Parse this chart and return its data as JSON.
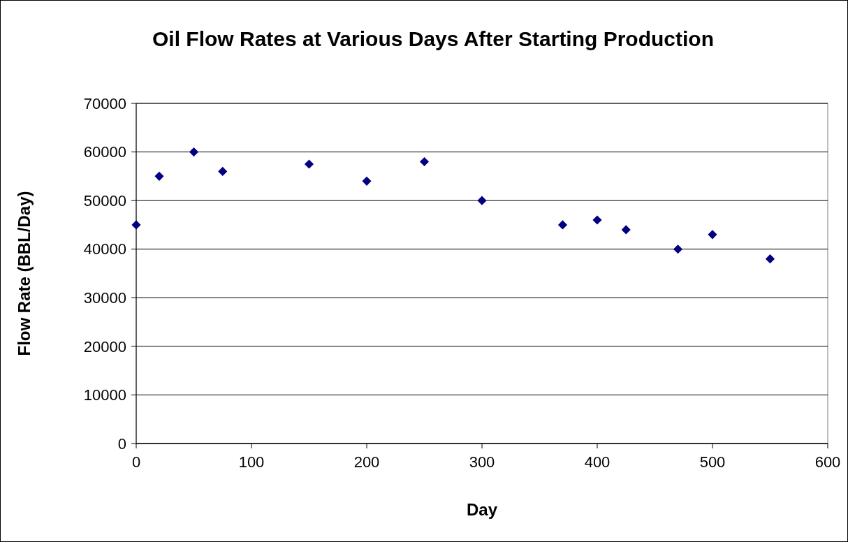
{
  "chart_data": {
    "type": "scatter",
    "title": "Oil Flow Rates at Various Days After Starting Production",
    "xlabel": "Day",
    "ylabel": "Flow Rate (BBL/Day)",
    "x": [
      0,
      20,
      50,
      75,
      150,
      200,
      250,
      300,
      370,
      400,
      425,
      470,
      500,
      550
    ],
    "series": [
      {
        "color": "#000080",
        "values": [
          45000,
          55000,
          60000,
          56000,
          57500,
          54000,
          58000,
          50000,
          45000,
          46000,
          44000,
          40000,
          43000,
          38000
        ]
      }
    ],
    "xlim": [
      0,
      600
    ],
    "xticks": [
      0,
      100,
      200,
      300,
      400,
      500,
      600
    ],
    "ylim": [
      0,
      70000
    ],
    "yticks": [
      0,
      10000,
      20000,
      30000,
      40000,
      50000,
      60000,
      70000
    ],
    "grid": "y",
    "marker": "diamond"
  }
}
